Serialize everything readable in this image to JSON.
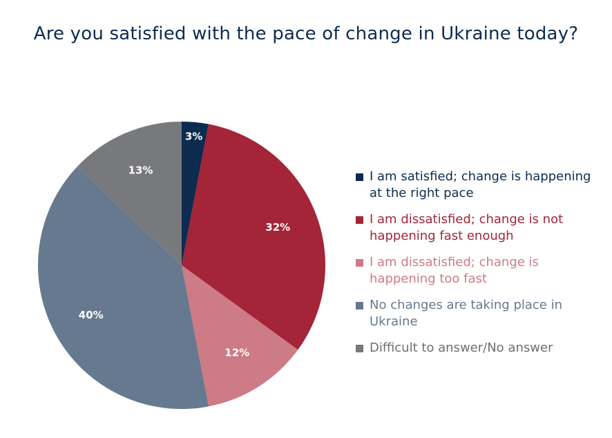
{
  "chart_data": {
    "type": "pie",
    "title": "Are you satisfied with the pace of change in Ukraine today?",
    "legend_position": "right",
    "slices": [
      {
        "label": "I am satisfied; change is happening at the right pace",
        "value": 3,
        "value_label": "3%",
        "color": "#0d2b4e",
        "text_color": "#0d2b4e"
      },
      {
        "label": "I am dissatisfied; change is not happening fast enough",
        "value": 32,
        "value_label": "32%",
        "color": "#a42438",
        "text_color": "#a42438"
      },
      {
        "label": "I am dissatisfied; change is happening too fast",
        "value": 12,
        "value_label": "12%",
        "color": "#cd7b87",
        "text_color": "#cd7b87"
      },
      {
        "label": "No changes are taking place in Ukraine",
        "value": 40,
        "value_label": "40%",
        "color": "#66798f",
        "text_color": "#66798f"
      },
      {
        "label": "Difficult to answer/No answer",
        "value": 13,
        "value_label": "13%",
        "color": "#78797d",
        "text_color": "#6d6e72"
      }
    ]
  }
}
